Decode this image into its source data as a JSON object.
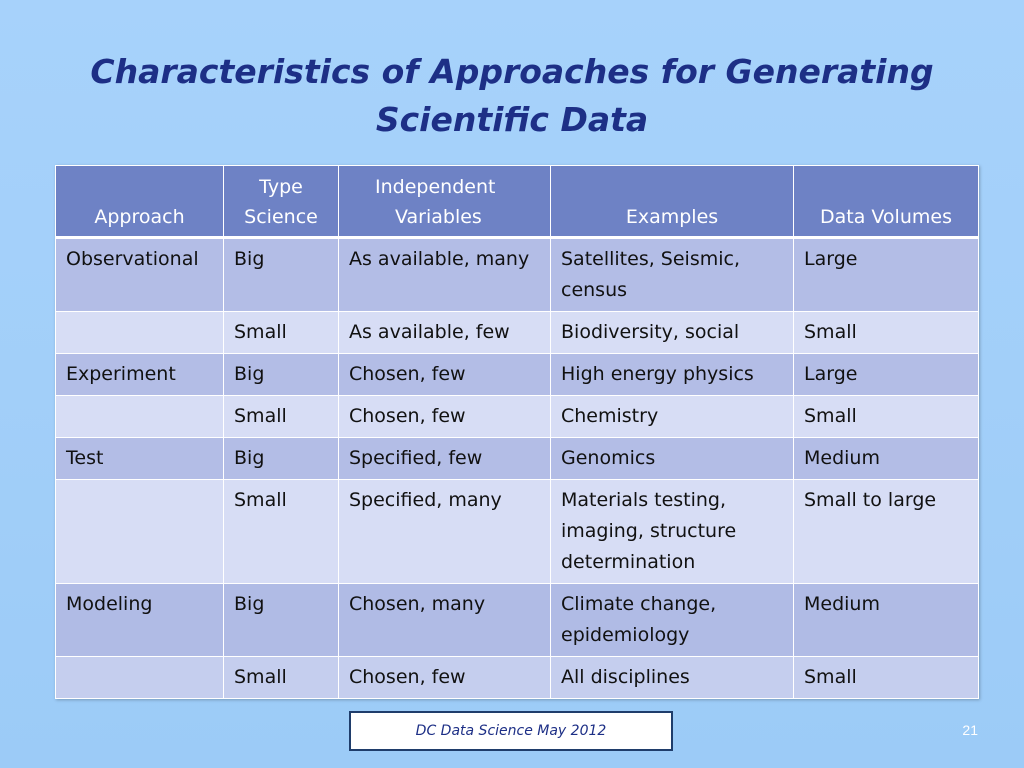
{
  "title": {
    "line1": "Characteristics of Approaches for Generating",
    "line2": "Scientific Data"
  },
  "table": {
    "headers": {
      "approach": "Approach",
      "type_line1": "Type",
      "type_line2": "Science",
      "indep_line1": "Independent",
      "indep_line2": "Variables",
      "examples": "Examples",
      "volumes": "Data Volumes"
    },
    "rows": [
      {
        "approach": "Observational",
        "type": "Big",
        "variables": "As available, many",
        "examples": "Satellites, Seismic, census",
        "volume": "Large"
      },
      {
        "approach": "",
        "type": "Small",
        "variables": "As available, few",
        "examples": "Biodiversity, social",
        "volume": "Small"
      },
      {
        "approach": "Experiment",
        "type": "Big",
        "variables": "Chosen, few",
        "examples": "High energy physics",
        "volume": "Large"
      },
      {
        "approach": "",
        "type": "Small",
        "variables": "Chosen, few",
        "examples": "Chemistry",
        "volume": "Small"
      },
      {
        "approach": "Test",
        "type": "Big",
        "variables": "Specified, few",
        "examples": "Genomics",
        "volume": "Medium"
      },
      {
        "approach": "",
        "type": "Small",
        "variables": "Specified, many",
        "examples": "Materials testing, imaging, structure determination",
        "volume": "Small to large"
      },
      {
        "approach": "Modeling",
        "type": "Big",
        "variables": "Chosen, many",
        "examples": "Climate change, epidemiology",
        "volume": "Medium"
      },
      {
        "approach": "",
        "type": "Small",
        "variables": "Chosen, few",
        "examples": "All disciplines",
        "volume": "Small"
      }
    ]
  },
  "footer": {
    "label": "DC Data Science May 2012",
    "page_number": "21"
  }
}
